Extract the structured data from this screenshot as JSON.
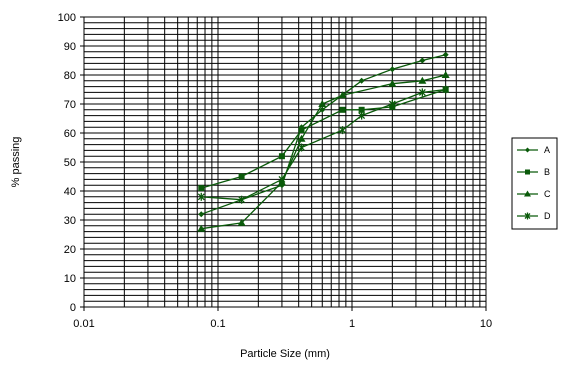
{
  "chart_data": {
    "type": "line",
    "xlabel": "Particle Size (mm)",
    "ylabel": "% passing",
    "xscale": "log",
    "xlim": [
      0.01,
      10
    ],
    "ylim": [
      0,
      100
    ],
    "x_ticks": [
      "0.01",
      "0.1",
      "1",
      "10"
    ],
    "y_ticks": [
      "0",
      "10",
      "20",
      "30",
      "40",
      "50",
      "60",
      "70",
      "80",
      "90",
      "100"
    ],
    "grid": true,
    "legend_position": "right",
    "series": [
      {
        "name": "A",
        "marker": "diamond",
        "points": [
          [
            0.075,
            32
          ],
          [
            0.3,
            42
          ],
          [
            0.42,
            62
          ],
          [
            0.6,
            68
          ],
          [
            1.18,
            78
          ],
          [
            2.0,
            82
          ],
          [
            3.35,
            85
          ],
          [
            5.0,
            87
          ]
        ]
      },
      {
        "name": "B",
        "marker": "square",
        "points": [
          [
            0.075,
            41
          ],
          [
            0.15,
            45
          ],
          [
            0.3,
            52
          ],
          [
            0.42,
            61
          ],
          [
            0.85,
            68
          ],
          [
            1.18,
            68
          ],
          [
            2.0,
            69
          ],
          [
            5.0,
            75
          ]
        ]
      },
      {
        "name": "C",
        "marker": "triangle",
        "points": [
          [
            0.075,
            27
          ],
          [
            0.15,
            29
          ],
          [
            0.3,
            43
          ],
          [
            0.42,
            58
          ],
          [
            0.6,
            70
          ],
          [
            0.85,
            73
          ],
          [
            2.0,
            77
          ],
          [
            3.35,
            78
          ],
          [
            5.0,
            80
          ]
        ]
      },
      {
        "name": "D",
        "marker": "star",
        "points": [
          [
            0.075,
            38
          ],
          [
            0.15,
            37
          ],
          [
            0.3,
            44
          ],
          [
            0.42,
            55
          ],
          [
            0.85,
            61
          ],
          [
            1.18,
            66
          ],
          [
            2.0,
            70
          ],
          [
            3.35,
            74
          ],
          [
            5.0,
            75
          ]
        ]
      }
    ]
  }
}
